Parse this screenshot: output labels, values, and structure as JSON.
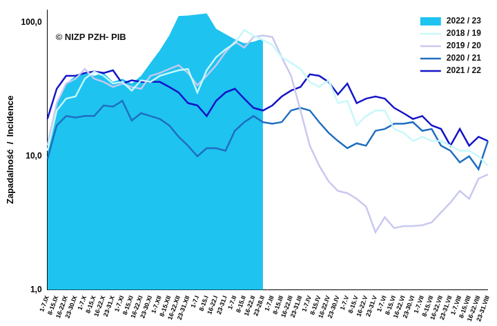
{
  "chart_data": {
    "type": "line",
    "y_label": "Zapadalność  /  Incidence",
    "annotations": [
      "© NIZP PZH- PIB"
    ],
    "categories": [
      "1-7.IX",
      "8-15.IX",
      "16-22.IX",
      "23-30.IX",
      "1-7.X",
      "8-15.X",
      "16-22.X",
      "23-31.X",
      "1-7.XI",
      "8-15.XI",
      "16-22.XI",
      "23-30.XI",
      "1-7.XII",
      "8-15.XII",
      "16-22.XII",
      "23-31.XII",
      "1-7.I",
      "8-15.I",
      "16-22.I",
      "23-31.I",
      "1-7.II",
      "8-15.II",
      "16-22.II",
      "23-28.II",
      "1-7.III",
      "8-15.III",
      "16-22.III",
      "23-31.III",
      "1-7.IV",
      "8-15.IV",
      "16-22.IV",
      "23-30.IV",
      "1-7.V",
      "8-15.V",
      "16-22.V",
      "23-31.V",
      "1-7.VI",
      "8-15.VI",
      "16-22.VI",
      "23-30.VI",
      "1-7.VII",
      "8-15.VII",
      "16-22.VII",
      "23-31.VII",
      "1-7.VIII",
      "8-15.VIII",
      "16-22.VIII",
      "23-31.VIII"
    ],
    "series": [
      {
        "name": "2022 / 23",
        "type": "area",
        "color": "#1ec3f0",
        "values": [
          13,
          25,
          35,
          40,
          42,
          40,
          42,
          36,
          38,
          35,
          40,
          50,
          62,
          80,
          112,
          113,
          115,
          117,
          90,
          82,
          75,
          70,
          72,
          76,
          null,
          null,
          null,
          null,
          null,
          null,
          null,
          null,
          null,
          null,
          null,
          null,
          null,
          null,
          null,
          null,
          null,
          null,
          null,
          null,
          null,
          null,
          null,
          null
        ]
      },
      {
        "name": "2018 / 19",
        "type": "line",
        "color": "#c8f8fa",
        "values": [
          11,
          22,
          27,
          28,
          38,
          43,
          40,
          35,
          36,
          31,
          37,
          36,
          40,
          42,
          44,
          45,
          30,
          44,
          55,
          63,
          70,
          88,
          80,
          74,
          68,
          55,
          50,
          45,
          36,
          33,
          37,
          25,
          26,
          17,
          20,
          22,
          22,
          16,
          15,
          13,
          14,
          13,
          13,
          12,
          11,
          11,
          10,
          8.5
        ]
      },
      {
        "name": "2019 / 20",
        "type": "line",
        "color": "#c8c8f0",
        "values": [
          12,
          25,
          35,
          38,
          45,
          38,
          36,
          33,
          35,
          33,
          32,
          40,
          42,
          45,
          48,
          42,
          34,
          40,
          48,
          60,
          72,
          65,
          78,
          80,
          78,
          55,
          40,
          22,
          12,
          8.5,
          6.5,
          5.5,
          5.3,
          4.8,
          4.2,
          2.7,
          3.5,
          2.9,
          3,
          3,
          3.05,
          3.2,
          3.8,
          4.5,
          5.5,
          4.8,
          6.8,
          7.3
        ]
      },
      {
        "name": "2020 / 21",
        "type": "line",
        "color": "#1f6ec0",
        "values": [
          9.5,
          17,
          20,
          19.5,
          20,
          20,
          24,
          23.5,
          26,
          18.5,
          21,
          20,
          19,
          17,
          14,
          12,
          10,
          11.5,
          11.5,
          11,
          15.5,
          18,
          20,
          18,
          17.5,
          18,
          22,
          23,
          22,
          18,
          15,
          13,
          11.5,
          12.5,
          12,
          15.5,
          16,
          17.5,
          17.5,
          18,
          15.5,
          16,
          12,
          11,
          9,
          10,
          8,
          13
        ]
      },
      {
        "name": "2021 / 22",
        "type": "line",
        "color": "#1414c8",
        "values": [
          19,
          32,
          40,
          40,
          42,
          43,
          42,
          44,
          35,
          37,
          36,
          36,
          36,
          33,
          30,
          25,
          24,
          20,
          26,
          30,
          32,
          27,
          23,
          22,
          24,
          28,
          31,
          33,
          41,
          40,
          36,
          29,
          35,
          25,
          27,
          28,
          27,
          23,
          21,
          19,
          20,
          17,
          16,
          12,
          16,
          12,
          14,
          13
        ]
      }
    ],
    "log": "y",
    "ylim": [
      1,
      125
    ],
    "yticks": [
      {
        "value": 1,
        "label": "1,0"
      },
      {
        "value": 10,
        "label": "10,0"
      },
      {
        "value": 100,
        "label": "100,0"
      }
    ],
    "grid": false,
    "legend": "upper right"
  }
}
